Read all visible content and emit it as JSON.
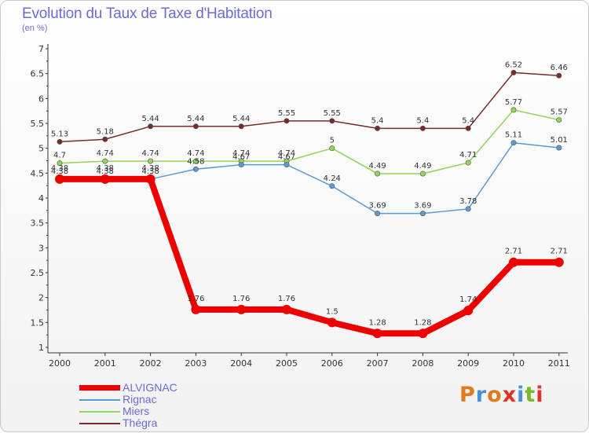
{
  "title": "Evolution du Taux de Taxe d'Habitation",
  "subtitle": "(en %)",
  "logo_text": "Proxiti",
  "logo_colors": [
    "#e07a1f",
    "#4a90d9",
    "#e07a1f",
    "#e0302a",
    "#4a90d9",
    "#7ab828",
    "#e0302a"
  ],
  "chart_data": {
    "type": "line",
    "x": [
      "2000",
      "2001",
      "2002",
      "2003",
      "2004",
      "2005",
      "2006",
      "2007",
      "2008",
      "2009",
      "2010",
      "2011"
    ],
    "ylim": [
      1,
      7
    ],
    "yticks": [
      "1",
      "1.5",
      "2",
      "2.5",
      "3",
      "3.5",
      "4",
      "4.5",
      "5",
      "5.5",
      "6",
      "6.5",
      "7"
    ],
    "grid": false,
    "legend_position": "bottom-left",
    "series": [
      {
        "name": "Thégra",
        "color": "#7a2a2a",
        "thick": false,
        "values": [
          5.13,
          5.18,
          5.44,
          5.44,
          5.44,
          5.55,
          5.55,
          5.4,
          5.4,
          5.4,
          6.52,
          6.46
        ],
        "labels": [
          "5.13",
          "5.18",
          "5.44",
          "5.44",
          "5.44",
          "5.55",
          "5.55",
          "5.4",
          "5.4",
          "5.4",
          "6.52",
          "6.46"
        ]
      },
      {
        "name": "Miers",
        "color": "#8fd65a",
        "thick": false,
        "values": [
          4.7,
          4.74,
          4.74,
          4.74,
          4.74,
          4.74,
          5.0,
          4.49,
          4.49,
          4.71,
          5.77,
          5.57
        ],
        "labels": [
          "4.7",
          "4.74",
          "4.74",
          "4.74",
          "4.74",
          "4.74",
          "5",
          "4.49",
          "4.49",
          "4.71",
          "5.77",
          "5.57"
        ]
      },
      {
        "name": "Rignac",
        "color": "#5b9bd5",
        "thick": false,
        "values": [
          4.38,
          4.38,
          4.38,
          4.58,
          4.67,
          4.67,
          4.24,
          3.69,
          3.69,
          3.78,
          5.11,
          5.01
        ],
        "labels": [
          "4.38",
          "4.38",
          "4.38",
          "4.58",
          "4.67",
          "4.67",
          "4.24",
          "3.69",
          "3.69",
          "3.78",
          "5.11",
          "5.01"
        ]
      },
      {
        "name": "ALVIGNAC",
        "color": "#ee0000",
        "thick": true,
        "values": [
          4.38,
          4.38,
          4.38,
          1.76,
          1.76,
          1.76,
          1.5,
          1.28,
          1.28,
          1.74,
          2.71,
          2.71
        ],
        "labels": [
          "4.38",
          "4.38",
          "4.38",
          "1.76",
          "1.76",
          "1.76",
          "1.5",
          "1.28",
          "1.28",
          "1.74",
          "2.71",
          "2.71"
        ]
      }
    ],
    "legend": [
      "ALVIGNAC",
      "Rignac",
      "Miers",
      "Thégra"
    ]
  }
}
